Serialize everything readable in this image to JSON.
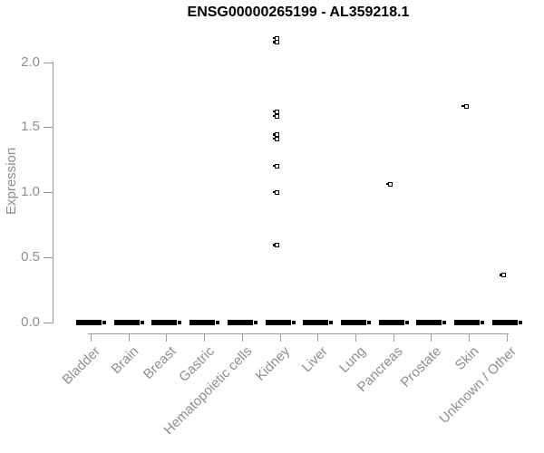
{
  "chart_data": {
    "type": "scatter",
    "title": "ENSG00000265199 - AL359218.1",
    "xlabel": "",
    "ylabel": "Expression",
    "categories": [
      "Bladder",
      "Brain",
      "Breast",
      "Gastric",
      "Hematopoietic cells",
      "Kidney",
      "Liver",
      "Lung",
      "Pancreas",
      "Prostate",
      "Skin",
      "Unknown / Other"
    ],
    "ytick_labels": [
      "0.0",
      "0.5",
      "1.0",
      "1.5",
      "2.0"
    ],
    "ylim": [
      0,
      2.2
    ],
    "grid": false,
    "legend": "none",
    "marker": "small-open-square",
    "points": [
      {
        "category": "Kidney",
        "values": [
          2.18,
          2.15,
          1.62,
          1.58,
          1.44,
          1.41,
          1.2,
          1.0,
          0.59
        ]
      },
      {
        "category": "Pancreas",
        "values": [
          1.06
        ]
      },
      {
        "category": "Skin",
        "values": [
          1.66
        ]
      },
      {
        "category": "Unknown / Other",
        "values": [
          0.36
        ]
      }
    ],
    "zero_cluster": {
      "value": 0.0,
      "categories": [
        "Bladder",
        "Brain",
        "Breast",
        "Gastric",
        "Hematopoietic cells",
        "Kidney",
        "Liver",
        "Lung",
        "Pancreas",
        "Prostate",
        "Skin",
        "Unknown / Other"
      ],
      "note": "Dense horizontal dash of many overlapping points at expression 0 under every category"
    },
    "colors": {
      "point": "#000000",
      "axis_line": "#9a9a9a",
      "axis_text": "#8e8e8e",
      "title_text": "#000000",
      "background": "#ffffff"
    }
  }
}
